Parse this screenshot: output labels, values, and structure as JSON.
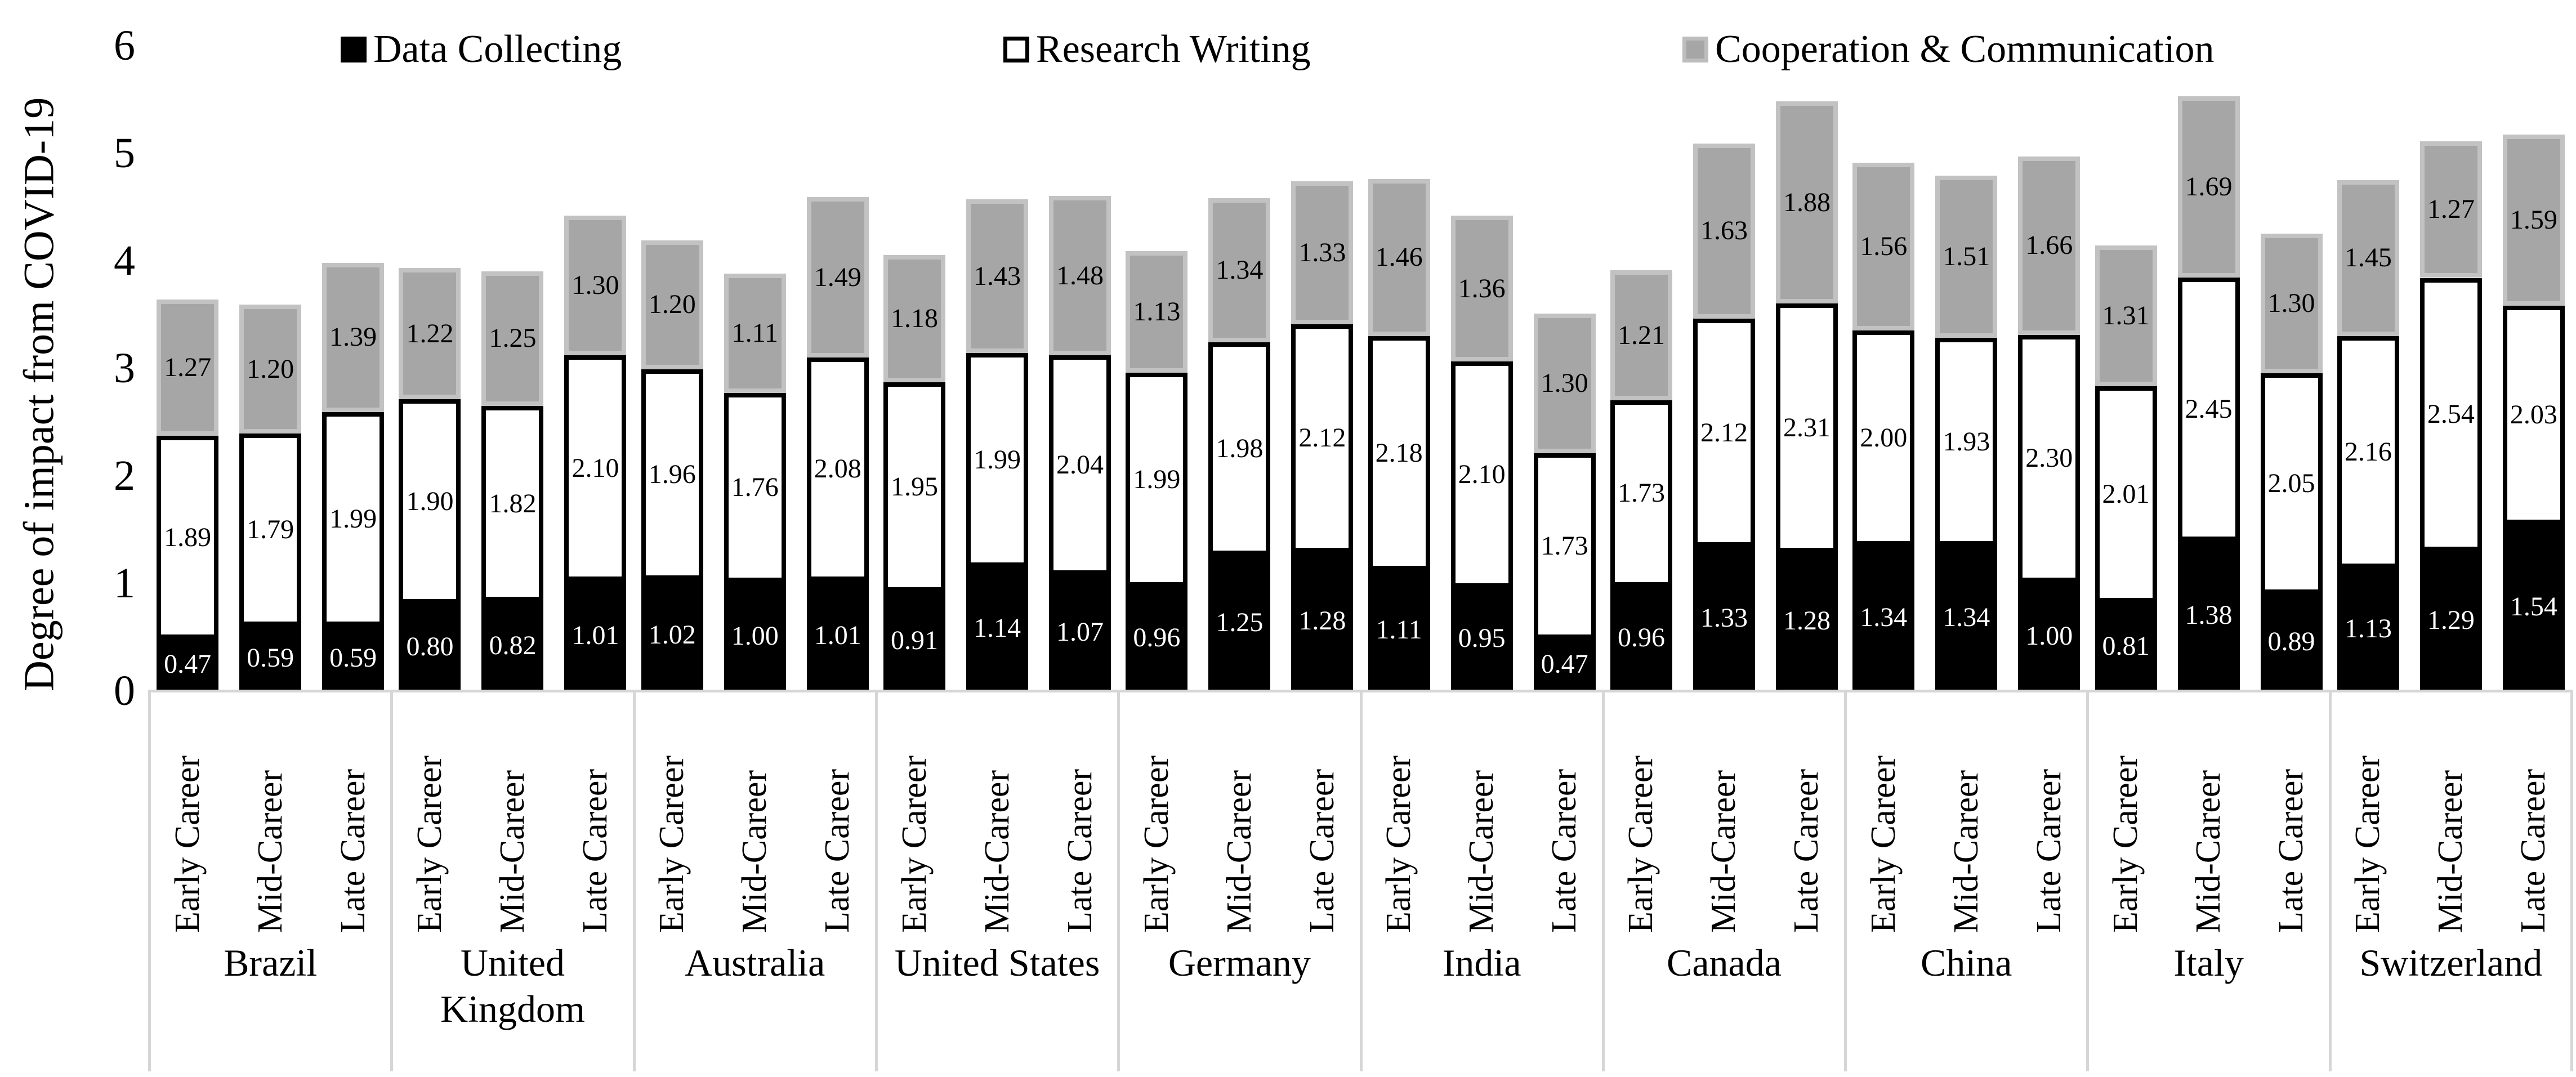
{
  "chart": {
    "y_axis": {
      "title": "Degree of impact from COVID-19",
      "ticks": [
        "0",
        "1",
        "2",
        "3",
        "4",
        "5",
        "6"
      ],
      "max": 6
    },
    "legend": [
      {
        "label": "Data Collecting",
        "swatch": "black"
      },
      {
        "label": "Research Writing",
        "swatch": "white"
      },
      {
        "label": "Cooperation & Communication",
        "swatch": "gray"
      }
    ],
    "colors": {
      "data_collecting": "#000000",
      "research_writing": "#ffffff",
      "cooperation_communication": "#a6a6a6",
      "gray_border": "#c2c2c2",
      "separator": "#d6d6d6"
    }
  },
  "chart_data": {
    "type": "bar",
    "stacked": true,
    "title": "",
    "xlabel": "",
    "ylabel": "Degree of impact from COVID-19",
    "ylim": [
      0,
      6
    ],
    "grid": false,
    "legend_position": "top",
    "series_names": [
      "Data Collecting",
      "Research Writing",
      "Cooperation & Communication"
    ],
    "careers": [
      "Early Career",
      "Mid-Career",
      "Late Career"
    ],
    "groups": [
      {
        "country": "Brazil",
        "bars": [
          {
            "career": "Early Career",
            "values": [
              0.47,
              1.89,
              1.27
            ]
          },
          {
            "career": "Mid-Career",
            "values": [
              0.59,
              1.79,
              1.2
            ]
          },
          {
            "career": "Late Career",
            "values": [
              0.59,
              1.99,
              1.39
            ]
          }
        ]
      },
      {
        "country": "United\nKingdom",
        "bars": [
          {
            "career": "Early Career",
            "values": [
              0.8,
              1.9,
              1.22
            ]
          },
          {
            "career": "Mid-Career",
            "values": [
              0.82,
              1.82,
              1.25
            ]
          },
          {
            "career": "Late Career",
            "values": [
              1.01,
              2.1,
              1.3
            ]
          }
        ]
      },
      {
        "country": "Australia",
        "bars": [
          {
            "career": "Early Career",
            "values": [
              1.02,
              1.96,
              1.2
            ]
          },
          {
            "career": "Mid-Career",
            "values": [
              1.0,
              1.76,
              1.11
            ]
          },
          {
            "career": "Late Career",
            "values": [
              1.01,
              2.08,
              1.49
            ]
          }
        ]
      },
      {
        "country": "United States",
        "bars": [
          {
            "career": "Early Career",
            "values": [
              0.91,
              1.95,
              1.18
            ]
          },
          {
            "career": "Mid-Career",
            "values": [
              1.14,
              1.99,
              1.43
            ]
          },
          {
            "career": "Late Career",
            "values": [
              1.07,
              2.04,
              1.48
            ]
          }
        ]
      },
      {
        "country": "Germany",
        "bars": [
          {
            "career": "Early Career",
            "values": [
              0.96,
              1.99,
              1.13
            ]
          },
          {
            "career": "Mid-Career",
            "values": [
              1.25,
              1.98,
              1.34
            ]
          },
          {
            "career": "Late Career",
            "values": [
              1.28,
              2.12,
              1.33
            ]
          }
        ]
      },
      {
        "country": "India",
        "bars": [
          {
            "career": "Early Career",
            "values": [
              1.11,
              2.18,
              1.46
            ]
          },
          {
            "career": "Mid-Career",
            "values": [
              0.95,
              2.1,
              1.36
            ]
          },
          {
            "career": "Late Career",
            "values": [
              0.47,
              1.73,
              1.3
            ]
          }
        ]
      },
      {
        "country": "Canada",
        "bars": [
          {
            "career": "Early Career",
            "values": [
              0.96,
              1.73,
              1.21
            ]
          },
          {
            "career": "Mid-Career",
            "values": [
              1.33,
              2.12,
              1.63
            ]
          },
          {
            "career": "Late Career",
            "values": [
              1.28,
              2.31,
              1.88
            ]
          }
        ]
      },
      {
        "country": "China",
        "bars": [
          {
            "career": "Early Career",
            "values": [
              1.34,
              2.0,
              1.56
            ]
          },
          {
            "career": "Mid-Career",
            "values": [
              1.34,
              1.93,
              1.51
            ]
          },
          {
            "career": "Late Career",
            "values": [
              1.0,
              2.3,
              1.66
            ]
          }
        ]
      },
      {
        "country": "Italy",
        "bars": [
          {
            "career": "Early Career",
            "values": [
              0.81,
              2.01,
              1.31
            ]
          },
          {
            "career": "Mid-Career",
            "values": [
              1.38,
              2.45,
              1.69
            ]
          },
          {
            "career": "Late Career",
            "values": [
              0.89,
              2.05,
              1.3
            ]
          }
        ]
      },
      {
        "country": "Switzerland",
        "bars": [
          {
            "career": "Early Career",
            "values": [
              1.13,
              2.16,
              1.45
            ]
          },
          {
            "career": "Mid-Career",
            "values": [
              1.29,
              2.54,
              1.27
            ]
          },
          {
            "career": "Late Career",
            "values": [
              1.54,
              2.03,
              1.59
            ]
          }
        ]
      }
    ]
  }
}
